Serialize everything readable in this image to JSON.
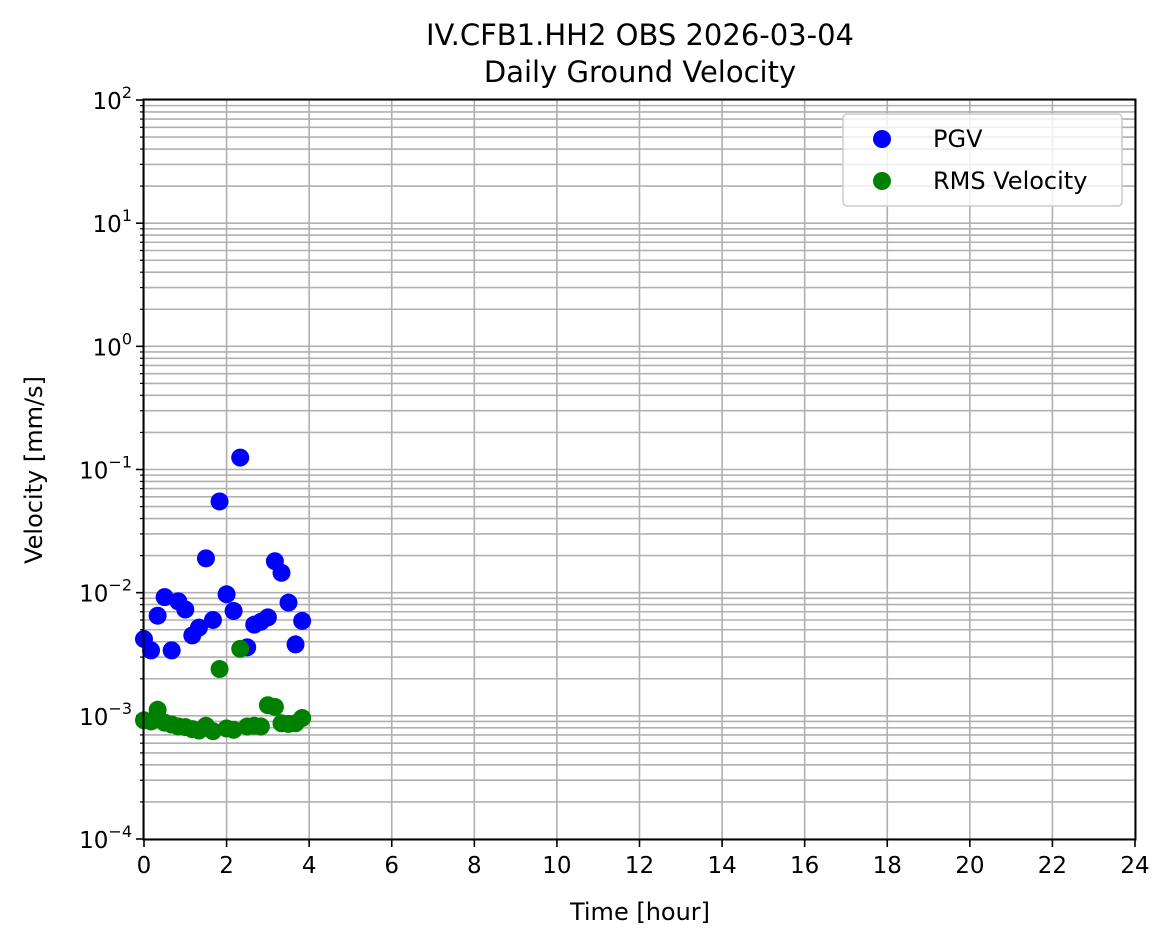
{
  "chart_data": {
    "type": "scatter",
    "title": "IV.CFB1.HH2 OBS 2026-03-04",
    "subtitle": "Daily Ground Velocity",
    "xlabel": "Time [hour]",
    "ylabel": "Velocity [mm/s]",
    "xlim": [
      0,
      24
    ],
    "ylim": [
      0.0001,
      100
    ],
    "yscale": "log",
    "x_ticks": [
      0,
      2,
      4,
      6,
      8,
      10,
      12,
      14,
      16,
      18,
      20,
      22,
      24
    ],
    "x_tick_labels": [
      "0",
      "2",
      "4",
      "6",
      "8",
      "10",
      "12",
      "14",
      "16",
      "18",
      "20",
      "22",
      "24"
    ],
    "y_ticks": [
      0.0001,
      0.001,
      0.01,
      0.1,
      1,
      10,
      100
    ],
    "y_tick_labels": [
      {
        "base": "10",
        "exp": "−4"
      },
      {
        "base": "10",
        "exp": "−3"
      },
      {
        "base": "10",
        "exp": "−2"
      },
      {
        "base": "10",
        "exp": "−1"
      },
      {
        "base": "10",
        "exp": "0"
      },
      {
        "base": "10",
        "exp": "1"
      },
      {
        "base": "10",
        "exp": "2"
      }
    ],
    "grid": true,
    "legend_position": "top-right",
    "series": [
      {
        "name": "PGV",
        "color": "#0000ff",
        "x": [
          0.0,
          0.17,
          0.33,
          0.5,
          0.67,
          0.83,
          1.0,
          1.17,
          1.33,
          1.5,
          1.67,
          1.83,
          2.0,
          2.17,
          2.33,
          2.5,
          2.67,
          2.83,
          3.0,
          3.17,
          3.33,
          3.5,
          3.67,
          3.83
        ],
        "y": [
          0.0042,
          0.0034,
          0.0065,
          0.0092,
          0.0034,
          0.0085,
          0.0073,
          0.0045,
          0.0052,
          0.019,
          0.006,
          0.055,
          0.0097,
          0.0071,
          0.125,
          0.0036,
          0.0055,
          0.0058,
          0.0063,
          0.018,
          0.0145,
          0.0083,
          0.0038,
          0.0059
        ]
      },
      {
        "name": "RMS Velocity",
        "color": "#008000",
        "x": [
          0.0,
          0.17,
          0.33,
          0.5,
          0.67,
          0.83,
          1.0,
          1.17,
          1.33,
          1.5,
          1.67,
          1.83,
          2.0,
          2.17,
          2.33,
          2.5,
          2.67,
          2.83,
          3.0,
          3.17,
          3.33,
          3.5,
          3.67,
          3.83
        ],
        "y": [
          0.00092,
          0.0009,
          0.00112,
          0.00088,
          0.00085,
          0.00082,
          0.00081,
          0.00078,
          0.00076,
          0.00083,
          0.00075,
          0.0024,
          0.00079,
          0.00077,
          0.0035,
          0.00082,
          0.00083,
          0.00082,
          0.00122,
          0.00118,
          0.00087,
          0.00086,
          0.00087,
          0.00096
        ]
      }
    ]
  }
}
